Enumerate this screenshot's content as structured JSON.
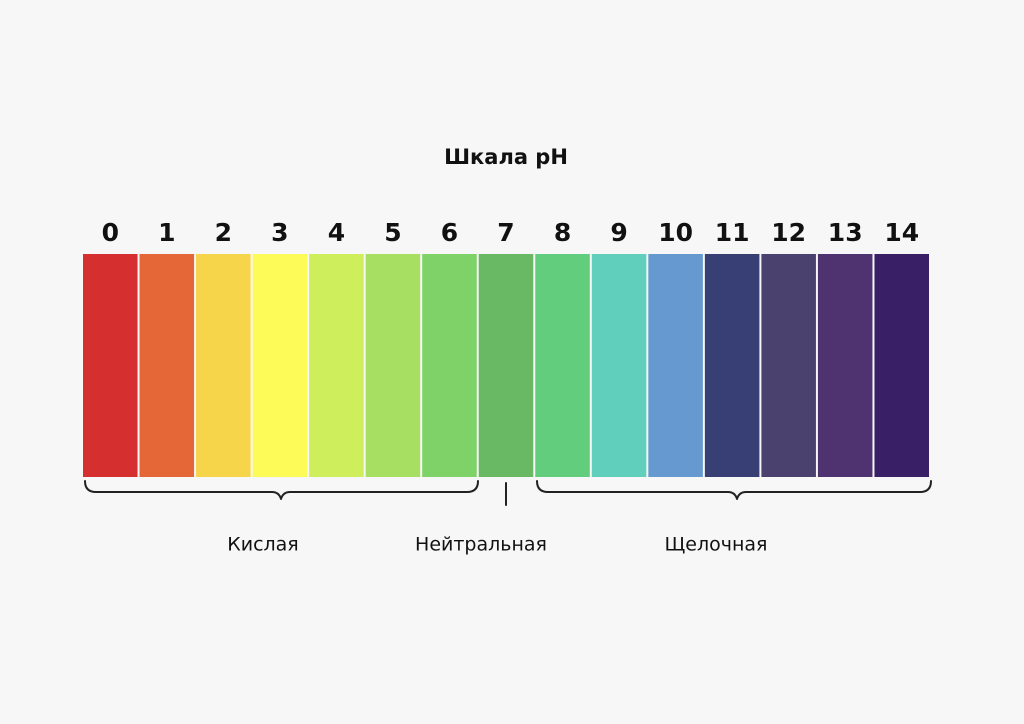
{
  "title": "Шкала pH",
  "levels": [
    {
      "ph": 0,
      "color": "#d62f2f"
    },
    {
      "ph": 1,
      "color": "#e56636"
    },
    {
      "ph": 2,
      "color": "#f6d54a"
    },
    {
      "ph": 3,
      "color": "#fdfb58"
    },
    {
      "ph": 4,
      "color": "#cfee5c"
    },
    {
      "ph": 5,
      "color": "#a6df62"
    },
    {
      "ph": 6,
      "color": "#7fd267"
    },
    {
      "ph": 7,
      "color": "#69b863"
    },
    {
      "ph": 8,
      "color": "#62cd7c"
    },
    {
      "ph": 9,
      "color": "#60d0bc"
    },
    {
      "ph": 10,
      "color": "#6599d0"
    },
    {
      "ph": 11,
      "color": "#383f74"
    },
    {
      "ph": 12,
      "color": "#4a416f"
    },
    {
      "ph": 13,
      "color": "#4f3370"
    },
    {
      "ph": 14,
      "color": "#391f66"
    }
  ],
  "groups": [
    {
      "label": "Кислая"
    },
    {
      "label": "Нейтральная"
    },
    {
      "label": "Щелочная"
    }
  ]
}
